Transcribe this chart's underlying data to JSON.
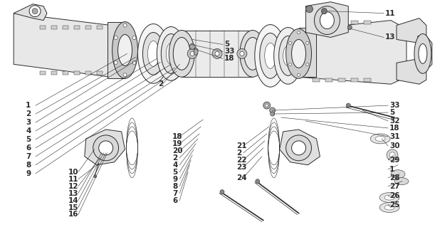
{
  "bg_color": "#ffffff",
  "line_color": "#2a2a2a",
  "fig_width": 6.18,
  "fig_height": 3.4,
  "dpi": 100
}
